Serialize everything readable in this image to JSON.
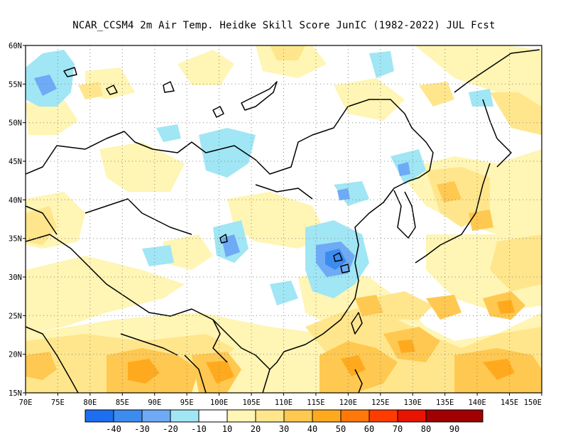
{
  "title": "NCAR_CCSM4  2m Air Temp. Heidke Skill Score JunIC (1982-2022) JUL Fcst",
  "axes": {
    "lon_labels": [
      "70E",
      "75E",
      "80E",
      "85E",
      "90E",
      "95E",
      "100E",
      "105E",
      "110E",
      "115E",
      "120E",
      "125E",
      "130E",
      "135E",
      "140E",
      "145E",
      "150E"
    ],
    "lat_labels": [
      "15N",
      "20N",
      "25N",
      "30N",
      "35N",
      "40N",
      "45N",
      "50N",
      "55N",
      "60N"
    ],
    "lon_range": [
      70,
      150
    ],
    "lat_range": [
      15,
      60
    ],
    "grid": "dotted"
  },
  "colorbar": {
    "labels": [
      "-40",
      "-30",
      "-20",
      "-10",
      "10",
      "20",
      "30",
      "40",
      "50",
      "60",
      "70",
      "80",
      "90"
    ],
    "colors": [
      "#1e6ef0",
      "#3c8cf0",
      "#6eaaf5",
      "#a0e6f5",
      "#ffffff",
      "#fff5b4",
      "#ffe68c",
      "#ffc850",
      "#ffaa1e",
      "#ff780a",
      "#ff3c00",
      "#e61400",
      "#a00000"
    ]
  },
  "colors": {
    "light_blue": "#a0e6f5",
    "mid_blue": "#6eaaf5",
    "blue": "#3c8cf0",
    "pale_yellow": "#fff5b4",
    "light_yellow": "#ffe68c",
    "light_orange": "#ffc850",
    "orange": "#ffaa1e"
  }
}
